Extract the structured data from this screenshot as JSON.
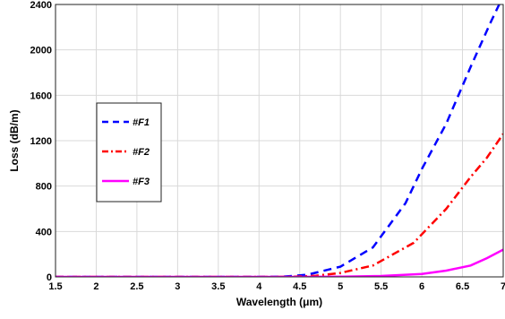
{
  "chart_data": {
    "type": "line",
    "xlabel": "Wavelength (μm)",
    "ylabel": "Loss (dB/m)",
    "xlim": [
      1.5,
      7
    ],
    "ylim": [
      0,
      2400
    ],
    "x_ticks": [
      1.5,
      2,
      2.5,
      3,
      3.5,
      4,
      4.5,
      5,
      5.5,
      6,
      6.5,
      7
    ],
    "x_tick_labels": [
      "1.5",
      "2",
      "2.5",
      "3",
      "3.5",
      "4",
      "4.5",
      "5",
      "5.5",
      "6",
      "6.5",
      "7"
    ],
    "y_ticks": [
      0,
      400,
      800,
      1200,
      1600,
      2000,
      2400
    ],
    "y_tick_labels": [
      "0",
      "400",
      "800",
      "1200",
      "1600",
      "2000",
      "2400"
    ],
    "grid": true,
    "legend_position": "middle-left",
    "series": [
      {
        "name": "#F1",
        "color": "#0000ff",
        "style": "dashed",
        "x": [
          1.5,
          2,
          2.5,
          3,
          3.5,
          4,
          4.3,
          4.6,
          5.0,
          5.4,
          5.8,
          6.0,
          6.3,
          6.6,
          6.85,
          6.95
        ],
        "y": [
          0,
          0,
          0,
          0,
          0,
          0,
          2,
          20,
          90,
          260,
          650,
          950,
          1350,
          1850,
          2250,
          2400
        ]
      },
      {
        "name": "#F2",
        "color": "#ff0000",
        "style": "dashdot",
        "x": [
          1.5,
          2,
          2.5,
          3,
          3.5,
          4,
          4.4,
          4.7,
          5.0,
          5.4,
          5.9,
          6.3,
          6.6,
          6.8,
          7.0
        ],
        "y": [
          0,
          0,
          0,
          0,
          0,
          0,
          1,
          10,
          35,
          100,
          300,
          600,
          880,
          1050,
          1260
        ]
      },
      {
        "name": "#F3",
        "color": "#ff00ff",
        "style": "solid",
        "x": [
          1.5,
          2,
          2.5,
          3,
          3.5,
          4,
          4.5,
          5.0,
          5.5,
          6.0,
          6.3,
          6.6,
          6.8,
          7.0
        ],
        "y": [
          0,
          0,
          0,
          0,
          0,
          0,
          0,
          2,
          8,
          25,
          55,
          100,
          165,
          240
        ]
      }
    ]
  }
}
